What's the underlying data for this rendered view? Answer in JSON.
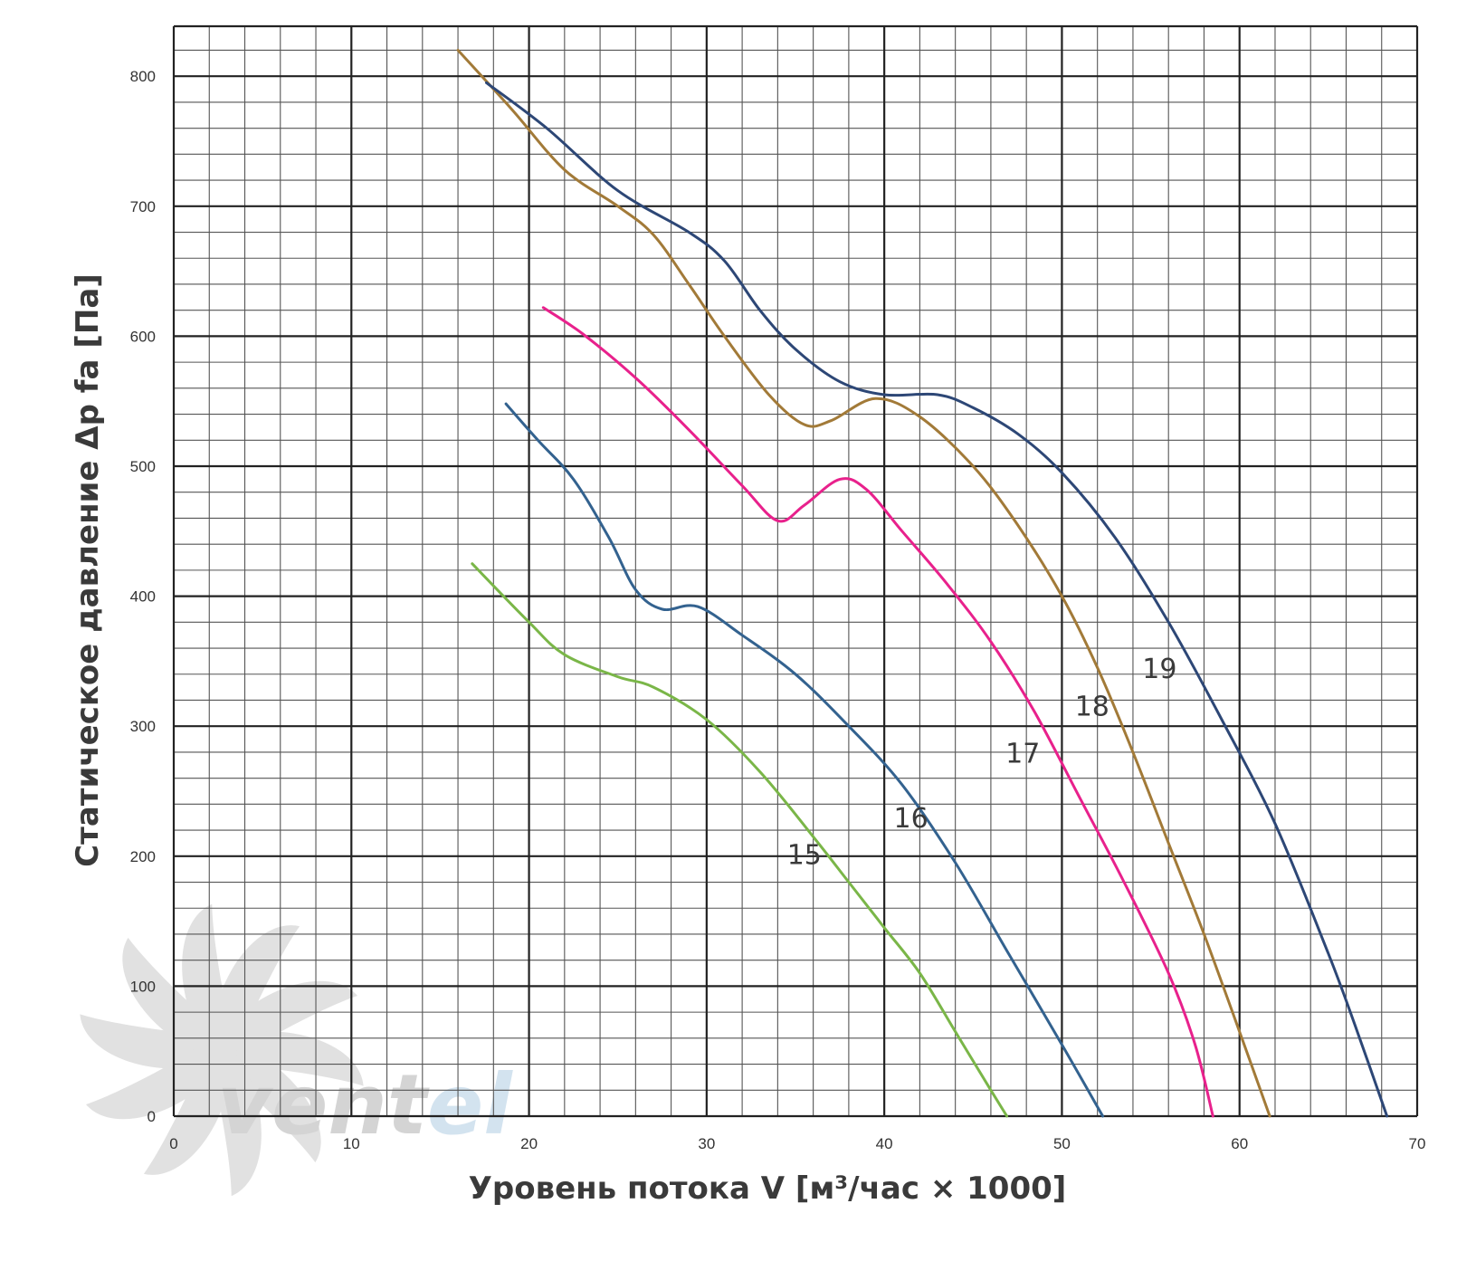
{
  "chart_data": {
    "type": "line",
    "xlabel": "Уровень потока V [м³/час × 1000]",
    "ylabel": "Статическое давление Δp fa [Па]",
    "xlim": [
      0,
      70
    ],
    "ylim": [
      0,
      850
    ],
    "x_ticks": [
      "0",
      "10",
      "20",
      "30",
      "40",
      "50",
      "60",
      "70"
    ],
    "y_ticks": [
      "0",
      "100",
      "200",
      "300",
      "400",
      "500",
      "600",
      "700",
      "800"
    ],
    "grid": true,
    "legend": "inline labels",
    "series": [
      {
        "name": "15",
        "color": "#7ab648",
        "points": [
          [
            16.8,
            425
          ],
          [
            20,
            380
          ],
          [
            22,
            355
          ],
          [
            25,
            338
          ],
          [
            27,
            330
          ],
          [
            30,
            305
          ],
          [
            33,
            265
          ],
          [
            36,
            215
          ],
          [
            38,
            180
          ],
          [
            40,
            145
          ],
          [
            42,
            110
          ],
          [
            44,
            65
          ],
          [
            46,
            20
          ],
          [
            46.9,
            0
          ]
        ]
      },
      {
        "name": "16",
        "color": "#33628f",
        "points": [
          [
            18.7,
            548
          ],
          [
            20.5,
            520
          ],
          [
            22.5,
            490
          ],
          [
            24.5,
            445
          ],
          [
            26,
            405
          ],
          [
            27.5,
            390
          ],
          [
            29.5,
            392
          ],
          [
            32,
            370
          ],
          [
            35,
            340
          ],
          [
            38,
            300
          ],
          [
            41,
            255
          ],
          [
            44,
            195
          ],
          [
            47,
            125
          ],
          [
            50,
            55
          ],
          [
            52.3,
            0
          ]
        ]
      },
      {
        "name": "17",
        "color": "#e8218c",
        "points": [
          [
            20.8,
            622
          ],
          [
            23,
            602
          ],
          [
            26,
            568
          ],
          [
            29,
            528
          ],
          [
            32,
            485
          ],
          [
            34,
            458
          ],
          [
            35.5,
            470
          ],
          [
            37.5,
            490
          ],
          [
            39,
            482
          ],
          [
            41,
            450
          ],
          [
            43.5,
            410
          ],
          [
            46,
            365
          ],
          [
            48.5,
            310
          ],
          [
            51,
            245
          ],
          [
            53.5,
            180
          ],
          [
            56,
            110
          ],
          [
            57.5,
            55
          ],
          [
            58.5,
            0
          ]
        ]
      },
      {
        "name": "18",
        "color": "#a27a38",
        "points": [
          [
            16,
            820
          ],
          [
            19,
            775
          ],
          [
            22,
            728
          ],
          [
            25,
            700
          ],
          [
            27,
            678
          ],
          [
            29,
            640
          ],
          [
            31,
            600
          ],
          [
            33.5,
            555
          ],
          [
            35.5,
            532
          ],
          [
            37,
            535
          ],
          [
            39.5,
            552
          ],
          [
            42,
            538
          ],
          [
            45,
            500
          ],
          [
            47.5,
            455
          ],
          [
            50,
            400
          ],
          [
            52,
            345
          ],
          [
            54,
            280
          ],
          [
            56,
            210
          ],
          [
            58,
            140
          ],
          [
            60,
            65
          ],
          [
            61.7,
            0
          ]
        ]
      },
      {
        "name": "19",
        "color": "#2d4776",
        "points": [
          [
            17.6,
            795
          ],
          [
            21,
            760
          ],
          [
            25,
            712
          ],
          [
            29,
            680
          ],
          [
            31,
            658
          ],
          [
            33,
            620
          ],
          [
            35,
            590
          ],
          [
            37.5,
            565
          ],
          [
            40,
            555
          ],
          [
            43,
            555
          ],
          [
            45,
            545
          ],
          [
            47.5,
            525
          ],
          [
            50,
            495
          ],
          [
            53,
            445
          ],
          [
            56,
            380
          ],
          [
            59,
            305
          ],
          [
            62,
            225
          ],
          [
            65,
            125
          ],
          [
            66.5,
            70
          ],
          [
            68.3,
            0
          ]
        ]
      }
    ],
    "labels": [
      {
        "text": "15",
        "x": 35.5,
        "y": 201
      },
      {
        "text": "16",
        "x": 41.5,
        "y": 229
      },
      {
        "text": "17",
        "x": 47.8,
        "y": 279
      },
      {
        "text": "18",
        "x": 51.7,
        "y": 315
      },
      {
        "text": "19",
        "x": 55.5,
        "y": 344
      }
    ]
  },
  "watermark": {
    "text_part1": "vent",
    "text_part2": "el",
    "color1": "#d0d0d0",
    "color2": "#cfe0ee",
    "icon": "fan-icon"
  }
}
